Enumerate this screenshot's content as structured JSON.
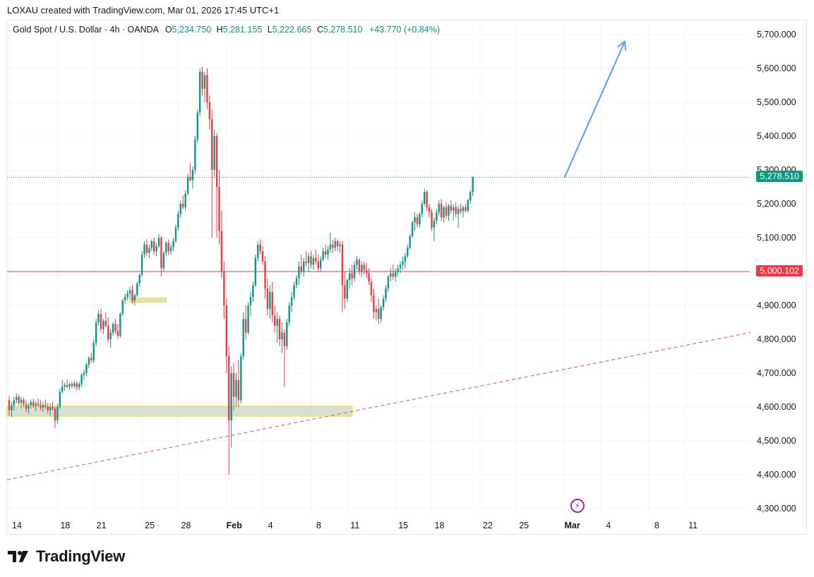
{
  "header": {
    "credit": "LOXAU created with TradingView.com, Mar 01, 2026 17:45 UTC+1"
  },
  "legend": {
    "symbol": "Gold Spot / U.S. Dollar · 4h · OANDA",
    "o_label": "O",
    "o_value": "5,234.750",
    "h_label": "H",
    "h_value": "5,281.155",
    "l_label": "L",
    "l_value": "5,222.665",
    "c_label": "C",
    "c_value": "5,278.510",
    "change": "+43.770 (+0.84%)"
  },
  "price_tags": {
    "last": "5,278.510",
    "level": "5,000.102"
  },
  "colors": {
    "up": "#089981",
    "down": "#f23645",
    "level_line": "#f23645",
    "trend_line": "#e04b5a",
    "arrow": "#5b9cf6",
    "zone_fill": "#c9d6c6",
    "zone_border": "#f2e24a"
  },
  "footer": {
    "brand": "TradingView"
  },
  "chart_data": {
    "type": "candlestick",
    "title": "Gold Spot / U.S. Dollar · 4h · OANDA",
    "ylim": [
      4250,
      5760
    ],
    "y_ticks": [
      "5,700.000",
      "5,600.000",
      "5,500.000",
      "5,400.000",
      "5,300.000",
      "5,200.000",
      "5,100.000",
      "5,000.000",
      "4,900.000",
      "4,800.000",
      "4,700.000",
      "4,600.000",
      "4,500.000",
      "4,400.000",
      "4,300.000"
    ],
    "y_tick_values": [
      5700,
      5600,
      5500,
      5400,
      5300,
      5200,
      5100,
      5000,
      4900,
      4800,
      4700,
      4600,
      4500,
      4400,
      4300
    ],
    "x_ticks": [
      {
        "label": "14",
        "index": 0
      },
      {
        "label": "18",
        "index": 20
      },
      {
        "label": "21",
        "index": 35
      },
      {
        "label": "25",
        "index": 55
      },
      {
        "label": "28",
        "index": 70
      },
      {
        "label": "Feb",
        "index": 90,
        "bold": true
      },
      {
        "label": "4",
        "index": 105
      },
      {
        "label": "8",
        "index": 125
      },
      {
        "label": "11",
        "index": 140
      },
      {
        "label": "15",
        "index": 160
      },
      {
        "label": "18",
        "index": 175
      },
      {
        "label": "22",
        "index": 195
      },
      {
        "label": "25",
        "index": 210
      },
      {
        "label": "Mar",
        "index": 230,
        "bold": true
      },
      {
        "label": "4",
        "index": 245
      },
      {
        "label": "8",
        "index": 265
      },
      {
        "label": "11",
        "index": 280
      }
    ],
    "last_price": 5278.51,
    "horizontal_level": 5000.102,
    "trend_line": [
      {
        "index": 0,
        "price": 4385
      },
      {
        "index": 307,
        "price": 4820
      }
    ],
    "arrow": [
      {
        "index": 230,
        "price": 5278
      },
      {
        "index": 255,
        "price": 5680
      }
    ],
    "zones": [
      {
        "from_index": 0,
        "to_index": 142,
        "low": 4573,
        "high": 4602
      },
      {
        "from_index": 51,
        "to_index": 65,
        "low": 4910,
        "high": 4922
      }
    ],
    "candles": [
      [
        4620,
        4632,
        4575,
        4590
      ],
      [
        4590,
        4615,
        4570,
        4605
      ],
      [
        4605,
        4630,
        4590,
        4620
      ],
      [
        4620,
        4640,
        4610,
        4630
      ],
      [
        4630,
        4636,
        4605,
        4612
      ],
      [
        4612,
        4630,
        4595,
        4622
      ],
      [
        4622,
        4628,
        4600,
        4608
      ],
      [
        4608,
        4620,
        4585,
        4595
      ],
      [
        4595,
        4612,
        4580,
        4605
      ],
      [
        4605,
        4622,
        4595,
        4615
      ],
      [
        4615,
        4624,
        4598,
        4603
      ],
      [
        4603,
        4618,
        4588,
        4610
      ],
      [
        4610,
        4625,
        4600,
        4605
      ],
      [
        4605,
        4620,
        4590,
        4598
      ],
      [
        4598,
        4615,
        4585,
        4606
      ],
      [
        4606,
        4622,
        4595,
        4601
      ],
      [
        4601,
        4612,
        4580,
        4590
      ],
      [
        4590,
        4610,
        4575,
        4600
      ],
      [
        4600,
        4615,
        4590,
        4595
      ],
      [
        4595,
        4600,
        4538,
        4560
      ],
      [
        4560,
        4610,
        4550,
        4600
      ],
      [
        4600,
        4655,
        4595,
        4645
      ],
      [
        4645,
        4680,
        4640,
        4660
      ],
      [
        4660,
        4672,
        4648,
        4665
      ],
      [
        4665,
        4680,
        4655,
        4660
      ],
      [
        4660,
        4672,
        4650,
        4668
      ],
      [
        4668,
        4675,
        4655,
        4662
      ],
      [
        4662,
        4678,
        4655,
        4670
      ],
      [
        4670,
        4676,
        4650,
        4658
      ],
      [
        4658,
        4675,
        4650,
        4668
      ],
      [
        4668,
        4700,
        4660,
        4695
      ],
      [
        4695,
        4710,
        4680,
        4700
      ],
      [
        4700,
        4730,
        4690,
        4725
      ],
      [
        4725,
        4750,
        4715,
        4745
      ],
      [
        4745,
        4760,
        4730,
        4738
      ],
      [
        4738,
        4800,
        4730,
        4790
      ],
      [
        4790,
        4860,
        4780,
        4850
      ],
      [
        4850,
        4885,
        4840,
        4875
      ],
      [
        4875,
        4890,
        4820,
        4830
      ],
      [
        4830,
        4860,
        4815,
        4855
      ],
      [
        4855,
        4880,
        4835,
        4840
      ],
      [
        4840,
        4865,
        4790,
        4800
      ],
      [
        4800,
        4830,
        4775,
        4820
      ],
      [
        4820,
        4850,
        4810,
        4845
      ],
      [
        4845,
        4860,
        4815,
        4825
      ],
      [
        4825,
        4845,
        4800,
        4810
      ],
      [
        4810,
        4880,
        4805,
        4875
      ],
      [
        4875,
        4920,
        4870,
        4915
      ],
      [
        4915,
        4935,
        4905,
        4925
      ],
      [
        4925,
        4945,
        4915,
        4935
      ],
      [
        4935,
        4955,
        4920,
        4945
      ],
      [
        4945,
        4960,
        4905,
        4915
      ],
      [
        4915,
        4935,
        4900,
        4930
      ],
      [
        4930,
        4970,
        4925,
        4965
      ],
      [
        4965,
        4995,
        4955,
        4990
      ],
      [
        4990,
        5060,
        4985,
        5050
      ],
      [
        5050,
        5090,
        5040,
        5080
      ],
      [
        5080,
        5095,
        5045,
        5055
      ],
      [
        5055,
        5080,
        5040,
        5070
      ],
      [
        5070,
        5095,
        5060,
        5090
      ],
      [
        5090,
        5100,
        5050,
        5060
      ],
      [
        5060,
        5085,
        5045,
        5075
      ],
      [
        5075,
        5110,
        5070,
        5100
      ],
      [
        5100,
        5105,
        4985,
        5010
      ],
      [
        5010,
        5060,
        5000,
        5055
      ],
      [
        5055,
        5090,
        5045,
        5085
      ],
      [
        5085,
        5095,
        5050,
        5060
      ],
      [
        5060,
        5080,
        5050,
        5072
      ],
      [
        5072,
        5100,
        5060,
        5090
      ],
      [
        5090,
        5140,
        5085,
        5130
      ],
      [
        5130,
        5180,
        5120,
        5170
      ],
      [
        5170,
        5210,
        5160,
        5200
      ],
      [
        5200,
        5225,
        5185,
        5190
      ],
      [
        5190,
        5240,
        5180,
        5230
      ],
      [
        5230,
        5290,
        5225,
        5280
      ],
      [
        5280,
        5320,
        5265,
        5270
      ],
      [
        5270,
        5310,
        5245,
        5300
      ],
      [
        5300,
        5400,
        5290,
        5390
      ],
      [
        5390,
        5480,
        5380,
        5470
      ],
      [
        5470,
        5600,
        5460,
        5590
      ],
      [
        5590,
        5605,
        5520,
        5540
      ],
      [
        5540,
        5590,
        5500,
        5580
      ],
      [
        5580,
        5600,
        5480,
        5500
      ],
      [
        5500,
        5520,
        5420,
        5450
      ],
      [
        5450,
        5480,
        5100,
        5300
      ],
      [
        5300,
        5420,
        5280,
        5400
      ],
      [
        5400,
        5410,
        5100,
        5250
      ],
      [
        5250,
        5300,
        5080,
        5120
      ],
      [
        5120,
        5180,
        4980,
        5000
      ],
      [
        5000,
        5030,
        4860,
        4900
      ],
      [
        4900,
        4920,
        4700,
        4750
      ],
      [
        4750,
        4780,
        4400,
        4560
      ],
      [
        4560,
        4720,
        4480,
        4700
      ],
      [
        4700,
        4730,
        4590,
        4630
      ],
      [
        4630,
        4700,
        4600,
        4680
      ],
      [
        4680,
        4740,
        4600,
        4620
      ],
      [
        4620,
        4760,
        4610,
        4750
      ],
      [
        4750,
        4880,
        4740,
        4860
      ],
      [
        4860,
        4900,
        4800,
        4820
      ],
      [
        4820,
        4910,
        4815,
        4900
      ],
      [
        4900,
        4940,
        4870,
        4925
      ],
      [
        4925,
        4970,
        4910,
        4960
      ],
      [
        4960,
        5050,
        4955,
        5040
      ],
      [
        5040,
        5090,
        5030,
        5080
      ],
      [
        5080,
        5095,
        5050,
        5060
      ],
      [
        5060,
        5075,
        5020,
        5030
      ],
      [
        5030,
        5045,
        4920,
        4950
      ],
      [
        4950,
        4980,
        4870,
        4890
      ],
      [
        4890,
        4960,
        4860,
        4940
      ],
      [
        4940,
        4970,
        4850,
        4870
      ],
      [
        4870,
        4900,
        4820,
        4840
      ],
      [
        4840,
        4880,
        4790,
        4860
      ],
      [
        4860,
        4870,
        4780,
        4800
      ],
      [
        4800,
        4850,
        4760,
        4820
      ],
      [
        4820,
        4830,
        4660,
        4780
      ],
      [
        4780,
        4860,
        4770,
        4850
      ],
      [
        4850,
        4910,
        4840,
        4900
      ],
      [
        4900,
        4940,
        4880,
        4925
      ],
      [
        4925,
        4970,
        4915,
        4960
      ],
      [
        4960,
        4990,
        4950,
        4980
      ],
      [
        4980,
        5030,
        4960,
        5015
      ],
      [
        5015,
        5050,
        4990,
        5000
      ],
      [
        5000,
        5040,
        4985,
        5030
      ],
      [
        5030,
        5060,
        5015,
        5025
      ],
      [
        5025,
        5055,
        5000,
        5045
      ],
      [
        5045,
        5060,
        5010,
        5020
      ],
      [
        5020,
        5050,
        5005,
        5040
      ],
      [
        5040,
        5065,
        5020,
        5030
      ],
      [
        5030,
        5050,
        5000,
        5010
      ],
      [
        5010,
        5045,
        5000,
        5035
      ],
      [
        5035,
        5070,
        5030,
        5060
      ],
      [
        5060,
        5080,
        5040,
        5050
      ],
      [
        5050,
        5075,
        5035,
        5065
      ],
      [
        5065,
        5115,
        5055,
        5080
      ],
      [
        5080,
        5095,
        5055,
        5070
      ],
      [
        5070,
        5100,
        5060,
        5090
      ],
      [
        5090,
        5095,
        5060,
        5075
      ],
      [
        5075,
        5090,
        5055,
        5080
      ],
      [
        5080,
        5090,
        4880,
        4960
      ],
      [
        4960,
        5000,
        4890,
        4920
      ],
      [
        4920,
        4980,
        4910,
        4975
      ],
      [
        4975,
        5010,
        4950,
        4995
      ],
      [
        4995,
        5020,
        4960,
        4980
      ],
      [
        4980,
        5030,
        4970,
        5020
      ],
      [
        5020,
        5045,
        5005,
        5035
      ],
      [
        5035,
        5040,
        4990,
        5000
      ],
      [
        5000,
        5030,
        4985,
        5020
      ],
      [
        5020,
        5030,
        4990,
        5005
      ],
      [
        5005,
        5025,
        4980,
        4995
      ],
      [
        4995,
        5010,
        4960,
        4970
      ],
      [
        4970,
        4980,
        4910,
        4930
      ],
      [
        4930,
        4950,
        4860,
        4880
      ],
      [
        4880,
        4900,
        4855,
        4890
      ],
      [
        4890,
        4920,
        4845,
        4860
      ],
      [
        4860,
        4900,
        4850,
        4895
      ],
      [
        4895,
        4930,
        4885,
        4920
      ],
      [
        4920,
        4960,
        4910,
        4950
      ],
      [
        4950,
        4990,
        4940,
        4985
      ],
      [
        4985,
        5010,
        4970,
        4995
      ],
      [
        4995,
        5020,
        4975,
        4985
      ],
      [
        4985,
        5010,
        4970,
        5000
      ],
      [
        5000,
        5020,
        4985,
        5010
      ],
      [
        5010,
        5030,
        4995,
        5020
      ],
      [
        5020,
        5045,
        5005,
        5030
      ],
      [
        5030,
        5055,
        5010,
        5045
      ],
      [
        5045,
        5080,
        5040,
        5070
      ],
      [
        5070,
        5110,
        5065,
        5105
      ],
      [
        5105,
        5150,
        5100,
        5145
      ],
      [
        5145,
        5175,
        5120,
        5160
      ],
      [
        5160,
        5170,
        5130,
        5140
      ],
      [
        5140,
        5175,
        5130,
        5170
      ],
      [
        5170,
        5210,
        5160,
        5200
      ],
      [
        5200,
        5245,
        5195,
        5235
      ],
      [
        5235,
        5240,
        5180,
        5190
      ],
      [
        5190,
        5200,
        5160,
        5175
      ],
      [
        5175,
        5185,
        5120,
        5130
      ],
      [
        5130,
        5160,
        5090,
        5150
      ],
      [
        5150,
        5185,
        5140,
        5175
      ],
      [
        5175,
        5210,
        5165,
        5200
      ],
      [
        5200,
        5215,
        5150,
        5160
      ],
      [
        5160,
        5195,
        5145,
        5190
      ],
      [
        5190,
        5205,
        5155,
        5165
      ],
      [
        5165,
        5200,
        5150,
        5195
      ],
      [
        5195,
        5210,
        5170,
        5180
      ],
      [
        5180,
        5200,
        5150,
        5190
      ],
      [
        5190,
        5205,
        5160,
        5170
      ],
      [
        5170,
        5195,
        5130,
        5185
      ],
      [
        5185,
        5200,
        5170,
        5178
      ],
      [
        5178,
        5195,
        5160,
        5190
      ],
      [
        5190,
        5200,
        5175,
        5180
      ],
      [
        5180,
        5215,
        5175,
        5210
      ],
      [
        5210,
        5240,
        5200,
        5235
      ],
      [
        5235,
        5281,
        5222,
        5278.51
      ]
    ]
  }
}
